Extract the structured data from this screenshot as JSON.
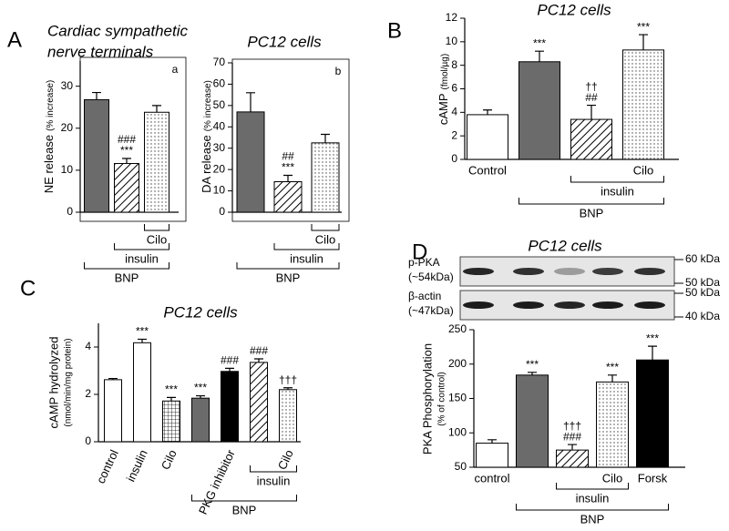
{
  "chart_data": [
    {
      "type": "bar",
      "panel": "A",
      "title": [
        "Cardiac sympathetic",
        "nerve terminals"
      ],
      "tag": "a",
      "y_label": "NE release",
      "y_label_unit": "(% increase)",
      "categories": [
        null,
        null,
        null
      ],
      "values": [
        26.8,
        11.6,
        23.8
      ],
      "errors": [
        1.7,
        1.2,
        1.6
      ],
      "fills": [
        "gray",
        "hatch",
        "dots"
      ],
      "annotations": [
        [],
        [
          "***",
          "###"
        ],
        []
      ],
      "ylim": [
        0,
        36
      ],
      "yticks": [
        0,
        10,
        20,
        30
      ],
      "brackets": [
        {
          "label": "Cilo",
          "from": 2,
          "to": 2
        },
        {
          "label": "insulin",
          "from": 1,
          "to": 2
        },
        {
          "label": "BNP",
          "from": 0,
          "to": 2
        }
      ]
    },
    {
      "type": "bar",
      "title": "PC12 cells",
      "tag": "b",
      "y_label": "DA release",
      "y_label_unit": "(% increase)",
      "categories": [
        null,
        null,
        null
      ],
      "values": [
        47,
        14.3,
        32.5
      ],
      "errors": [
        9,
        3,
        4
      ],
      "fills": [
        "gray",
        "hatch",
        "dots"
      ],
      "annotations": [
        [],
        [
          "***",
          "##"
        ],
        []
      ],
      "ylim": [
        0,
        70
      ],
      "yticks": [
        0,
        10,
        20,
        30,
        40,
        50,
        60,
        70
      ],
      "brackets": [
        {
          "label": "Cilo",
          "from": 2,
          "to": 2
        },
        {
          "label": "insulin",
          "from": 1,
          "to": 2
        },
        {
          "label": "BNP",
          "from": 0,
          "to": 2
        }
      ]
    },
    {
      "type": "bar",
      "panel": "B",
      "title": "PC12 cells",
      "y_label": "cAMP",
      "y_label_unit": "(fmol/µg)",
      "categories": [
        "Control",
        null,
        null,
        "Cilo"
      ],
      "values": [
        3.8,
        8.3,
        3.4,
        9.3
      ],
      "errors": [
        0.4,
        0.9,
        1.2,
        1.3
      ],
      "fills": [
        "white",
        "gray",
        "hatch",
        "dots"
      ],
      "annotations": [
        [],
        [
          "***"
        ],
        [
          "##",
          "††"
        ],
        [
          "***"
        ]
      ],
      "ylim": [
        0,
        12
      ],
      "yticks": [
        0,
        2,
        4,
        6,
        8,
        10,
        12
      ],
      "brackets": [
        {
          "label": "insulin",
          "from": 2,
          "to": 3
        },
        {
          "label": "BNP",
          "from": 1,
          "to": 3
        }
      ]
    },
    {
      "type": "bar",
      "panel": "C",
      "title": "PC12 cells",
      "y_label": "cAMP hydrolyzed",
      "y_label_unit": "(nmol/min/mg protein)",
      "categories": [
        "control",
        "insulin",
        "Cilo",
        null,
        "PKG inhibitor",
        null,
        "Cilo"
      ],
      "values": [
        2.62,
        4.18,
        1.72,
        1.84,
        2.97,
        3.35,
        2.2
      ],
      "errors": [
        0.05,
        0.15,
        0.15,
        0.1,
        0.13,
        0.15,
        0.08
      ],
      "fills": [
        "white",
        "white",
        "grid",
        "gray",
        "black",
        "hatch",
        "dots"
      ],
      "annotations": [
        [],
        [
          "***"
        ],
        [
          "***"
        ],
        [
          "***"
        ],
        [
          "###"
        ],
        [
          "###"
        ],
        [
          "†††"
        ]
      ],
      "ylim": [
        0,
        5
      ],
      "yticks": [
        0,
        2,
        4
      ],
      "brackets": [
        {
          "label": "insulin",
          "from": 5,
          "to": 6
        },
        {
          "label": "BNP",
          "from": 3,
          "to": 6
        }
      ]
    },
    {
      "type": "bar",
      "panel": "D",
      "title": "PC12 cells",
      "y_label": "PKA Phosphorylation",
      "y_label_unit": "(% of control)",
      "categories": [
        "control",
        null,
        null,
        "Cilo",
        "Forsk"
      ],
      "values": [
        85,
        184,
        75,
        174,
        206
      ],
      "errors": [
        5,
        4,
        8,
        10,
        20
      ],
      "fills": [
        "white",
        "gray",
        "hatch",
        "dots",
        "black"
      ],
      "annotations": [
        [],
        [
          "***"
        ],
        [
          "###",
          "†††"
        ],
        [
          "***"
        ],
        [
          "***"
        ]
      ],
      "ylim": [
        50,
        250
      ],
      "yticks": [
        50,
        100,
        150,
        200,
        250
      ],
      "brackets": [
        {
          "label": "insulin",
          "from": 2,
          "to": 3
        },
        {
          "label": "BNP",
          "from": 1,
          "to": 4
        }
      ],
      "blot": {
        "rows": [
          {
            "label": "p-PKA",
            "size": "(~54kDa)",
            "markers": [
              "60 kDa",
              "50 kDa"
            ]
          },
          {
            "label": "β-actin",
            "size": "(~47kDa)",
            "markers": [
              "50 kDa",
              "40 kDa"
            ]
          }
        ]
      }
    }
  ]
}
